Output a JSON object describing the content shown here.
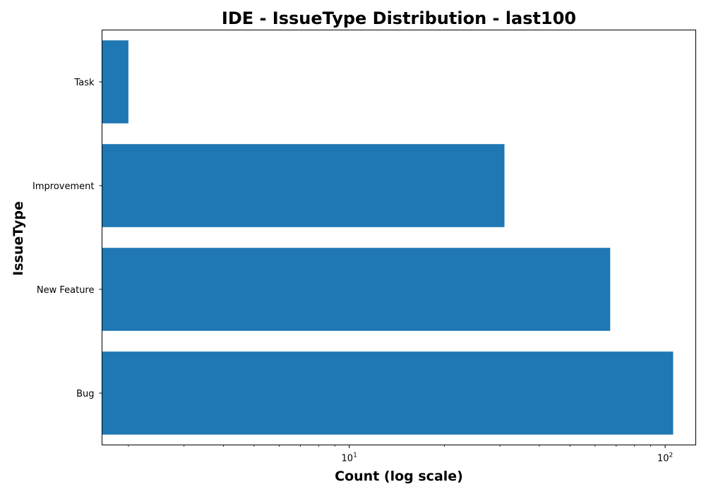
{
  "chart_data": {
    "type": "bar",
    "orientation": "horizontal",
    "title": "IDE - IssueType Distribution - last100",
    "xlabel": "Count (log scale)",
    "ylabel": "IssueType",
    "x_scale": "log",
    "categories": [
      "Bug",
      "New Feature",
      "Improvement",
      "Task"
    ],
    "values": [
      106,
      67,
      31,
      2
    ],
    "xlim": [
      1.65,
      125
    ],
    "x_major_ticks": [
      {
        "value": 10,
        "base": "10",
        "exp": "1"
      },
      {
        "value": 100,
        "base": "10",
        "exp": "2"
      }
    ],
    "x_minor_ticks": [
      2,
      3,
      4,
      5,
      6,
      7,
      8,
      9,
      20,
      30,
      40,
      50,
      60,
      70,
      80,
      90
    ],
    "bar_color": "#1f77b4",
    "grid": false,
    "legend": "none"
  }
}
